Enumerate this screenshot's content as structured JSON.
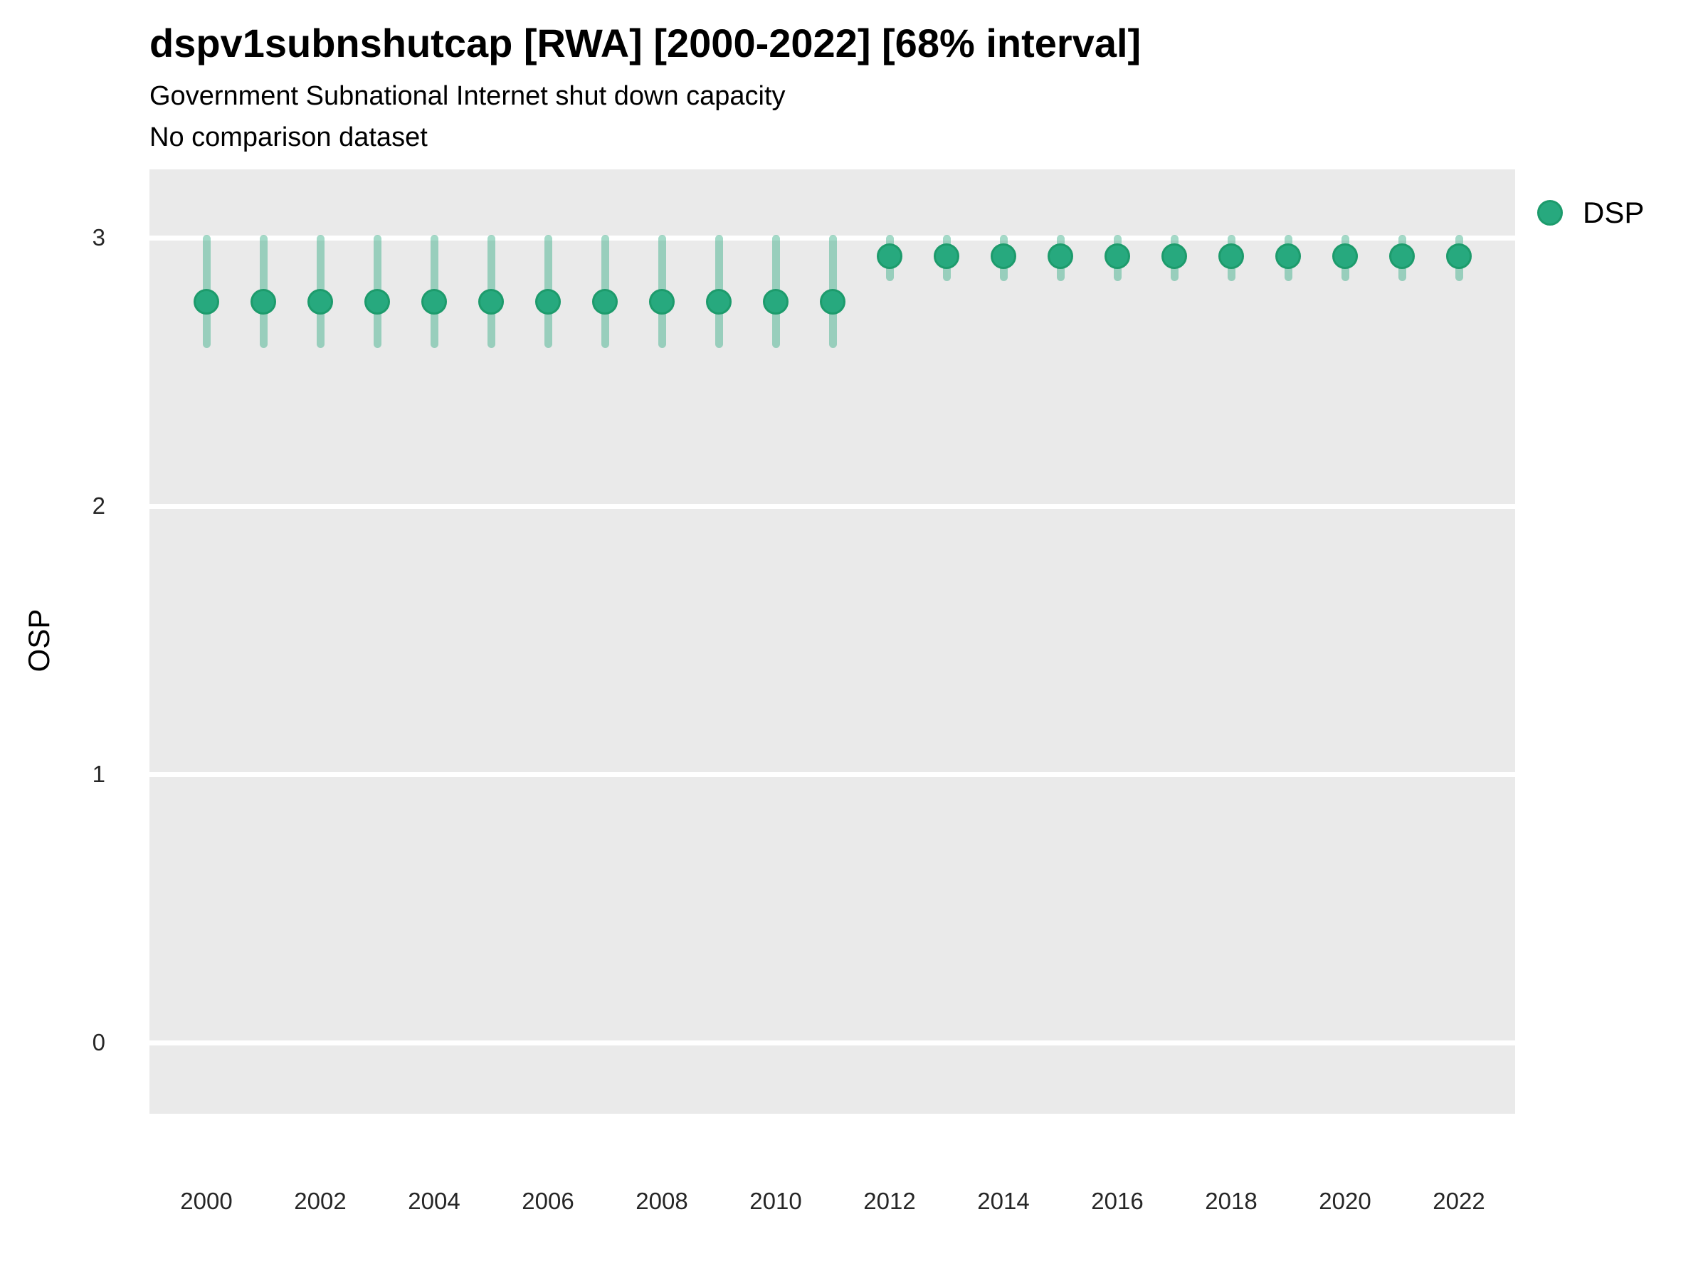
{
  "colors": {
    "point_fill": "#27a97e",
    "point_border": "#1d9b6c",
    "interval": "rgba(39,166,124,0.42)",
    "panel_background": "#eaeaea",
    "gridline": "#ffffff"
  },
  "chart_data": {
    "type": "pointrange",
    "title": "dspv1subnshutcap [RWA] [2000-2022] [68% interval]",
    "subtitle": "Government Subnational Internet shut down capacity",
    "comparison_note": "No comparison dataset",
    "xlabel": "",
    "ylabel": "OSP",
    "legend_position": "right",
    "legend_entries": [
      "DSP"
    ],
    "interval_level": "68%",
    "grid": "major-horizontal-only",
    "x_ticks": [
      2000,
      2002,
      2004,
      2006,
      2008,
      2010,
      2012,
      2014,
      2016,
      2018,
      2020,
      2022
    ],
    "y_ticks": [
      3,
      2,
      1,
      0
    ],
    "ylim": [
      -0.27,
      3.25
    ],
    "xlim": [
      2000,
      2022
    ],
    "series": [
      {
        "name": "DSP",
        "points": [
          {
            "year": 2000,
            "est": 2.76,
            "lo": 2.6,
            "hi": 3.0
          },
          {
            "year": 2001,
            "est": 2.76,
            "lo": 2.6,
            "hi": 3.0
          },
          {
            "year": 2002,
            "est": 2.76,
            "lo": 2.6,
            "hi": 3.0
          },
          {
            "year": 2003,
            "est": 2.76,
            "lo": 2.6,
            "hi": 3.0
          },
          {
            "year": 2004,
            "est": 2.76,
            "lo": 2.6,
            "hi": 3.0
          },
          {
            "year": 2005,
            "est": 2.76,
            "lo": 2.6,
            "hi": 3.0
          },
          {
            "year": 2006,
            "est": 2.76,
            "lo": 2.6,
            "hi": 3.0
          },
          {
            "year": 2007,
            "est": 2.76,
            "lo": 2.6,
            "hi": 3.0
          },
          {
            "year": 2008,
            "est": 2.76,
            "lo": 2.6,
            "hi": 3.0
          },
          {
            "year": 2009,
            "est": 2.76,
            "lo": 2.6,
            "hi": 3.0
          },
          {
            "year": 2010,
            "est": 2.76,
            "lo": 2.6,
            "hi": 3.0
          },
          {
            "year": 2011,
            "est": 2.76,
            "lo": 2.6,
            "hi": 3.0
          },
          {
            "year": 2012,
            "est": 2.93,
            "lo": 2.85,
            "hi": 3.0
          },
          {
            "year": 2013,
            "est": 2.93,
            "lo": 2.85,
            "hi": 3.0
          },
          {
            "year": 2014,
            "est": 2.93,
            "lo": 2.85,
            "hi": 3.0
          },
          {
            "year": 2015,
            "est": 2.93,
            "lo": 2.85,
            "hi": 3.0
          },
          {
            "year": 2016,
            "est": 2.93,
            "lo": 2.85,
            "hi": 3.0
          },
          {
            "year": 2017,
            "est": 2.93,
            "lo": 2.85,
            "hi": 3.0
          },
          {
            "year": 2018,
            "est": 2.93,
            "lo": 2.85,
            "hi": 3.0
          },
          {
            "year": 2019,
            "est": 2.93,
            "lo": 2.85,
            "hi": 3.0
          },
          {
            "year": 2020,
            "est": 2.93,
            "lo": 2.85,
            "hi": 3.0
          },
          {
            "year": 2021,
            "est": 2.93,
            "lo": 2.85,
            "hi": 3.0
          },
          {
            "year": 2022,
            "est": 2.93,
            "lo": 2.85,
            "hi": 3.0
          }
        ]
      }
    ]
  }
}
